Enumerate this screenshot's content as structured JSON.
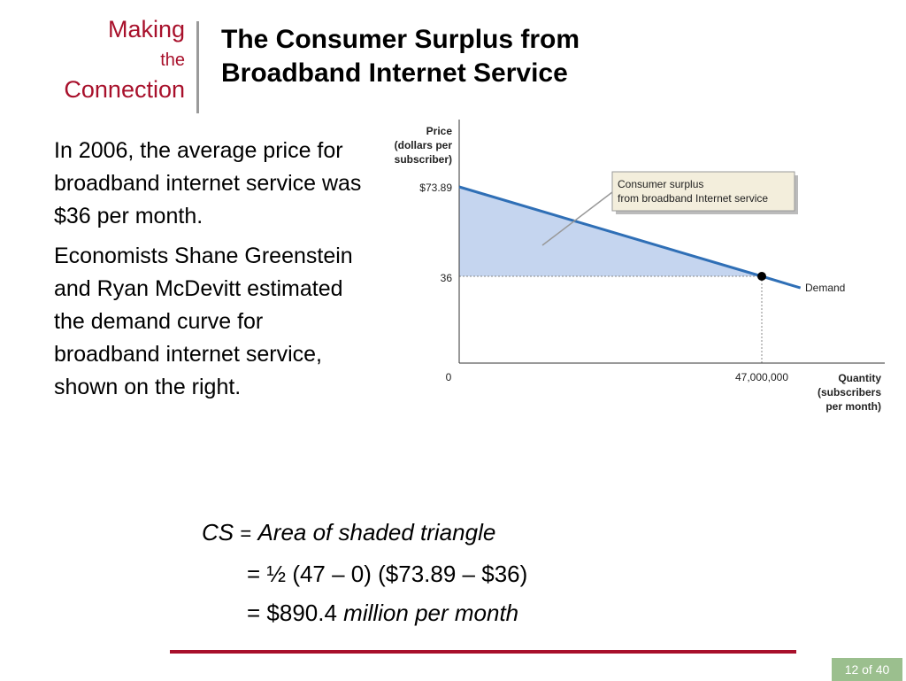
{
  "brand": {
    "making": "Making",
    "the": "the",
    "connection": "Connection"
  },
  "slide": {
    "title_line1": "The Consumer Surplus from",
    "title_line2": "Broadband Internet Service"
  },
  "body": {
    "p1": "In 2006, the average price for broadband internet service was $36 per month.",
    "p2": "Economists Shane Greenstein and Ryan McDevitt estimated the demand curve for broadband internet service, shown on the right."
  },
  "formula": {
    "line1_var": "CS",
    "line1_eq": "=",
    "line1_text": "Area of shaded triangle",
    "line2": "= ½ (47 – 0) ($73.89 – $36)",
    "line3_prefix": "= $890.4",
    "line3_suffix": "million per month"
  },
  "chart_data": {
    "type": "line",
    "ylabel": [
      "Price",
      "(dollars per",
      "subscriber)"
    ],
    "xlabel": [
      "Quantity",
      "(subscribers",
      "per month)"
    ],
    "y_ticks": [
      "$73.89",
      "36"
    ],
    "x_ticks": [
      "0",
      "47,000,000"
    ],
    "series": [
      {
        "name": "Demand",
        "x": [
          0,
          47000000,
          53000000
        ],
        "y": [
          73.89,
          36,
          31.2
        ]
      }
    ],
    "point": {
      "x": 47000000,
      "y": 36
    },
    "shaded_region": {
      "polygon": [
        [
          0,
          73.89
        ],
        [
          47000000,
          36
        ],
        [
          0,
          36
        ]
      ],
      "color": "#c5d5ef"
    },
    "annotation": {
      "line1": "Consumer surplus",
      "line2": "from broadband Internet service"
    },
    "colors": {
      "demand": "#2f6fb6",
      "shade": "#c5d5ef"
    }
  },
  "footer": {
    "page": "12 of 40"
  }
}
